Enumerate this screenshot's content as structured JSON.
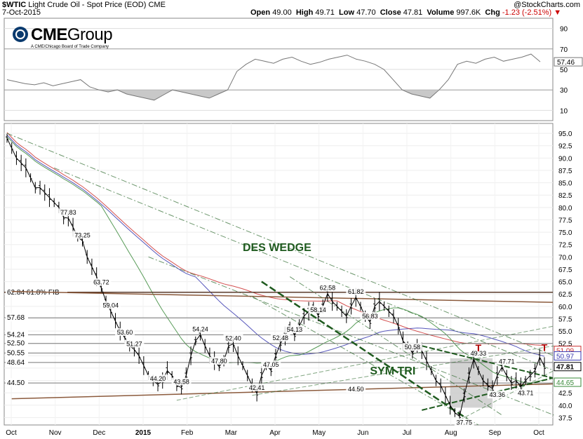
{
  "header": {
    "symbol": "$WTIC",
    "title": "Light Crude Oil - Spot Price (EOD)",
    "exchange": "CME",
    "date": "7-Oct-2015",
    "open_label": "Open",
    "open": "49.00",
    "high_label": "High",
    "high": "49.71",
    "low_label": "Low",
    "low": "47.70",
    "close_label": "Close",
    "close": "47.81",
    "volume_label": "Volume",
    "volume": "997.6K",
    "chg_label": "Chg",
    "chg": "-1.23 (-2.51%)",
    "credit": "@StockCharts.com"
  },
  "logo": {
    "word_bold": "CME",
    "word_thin": "Group",
    "sub": "A CME/Chicago Board of Trade Company"
  },
  "colors": {
    "price": "#000000",
    "trendline": "#2e6b2e",
    "ma_red": "#cc3333",
    "ma_blue": "#3a3ab0",
    "ma_green": "#3a8a3a",
    "support": "#8b5a3c",
    "shade": "#c8c8c8",
    "annotation_green": "#1e5a1e",
    "annotation_red": "#b00000"
  },
  "chart_data": [
    {
      "type": "line",
      "title": "",
      "series": [
        {
          "values": [
            40,
            38,
            36,
            35,
            37,
            34,
            36,
            38,
            40,
            33,
            30,
            28,
            30,
            26,
            24,
            22,
            20,
            25,
            30,
            28,
            26,
            24,
            22,
            26,
            30,
            48,
            55,
            60,
            58,
            56,
            60,
            62,
            58,
            55,
            57,
            60,
            62,
            64,
            60,
            58,
            55,
            50,
            40,
            30,
            26,
            24,
            22,
            30,
            40,
            55,
            58,
            56,
            60,
            62,
            58,
            60,
            62,
            65,
            57.46
          ]
        }
      ],
      "ylim": [
        0,
        100
      ],
      "yticks": [
        10,
        30,
        50,
        70,
        90
      ],
      "last_value_label": "57.46"
    },
    {
      "type": "line",
      "title": "",
      "series": [
        {
          "values": [
            94,
            92,
            90,
            89,
            88,
            86,
            84,
            84,
            83,
            82,
            81,
            80,
            78,
            77.83,
            76,
            74,
            73.25,
            70,
            68,
            66,
            63.72,
            61,
            59.04,
            57,
            55,
            53.6,
            52,
            51.27,
            50,
            48,
            46,
            45,
            44.2,
            45,
            47,
            46,
            44,
            43.58,
            46,
            50,
            53,
            54.24,
            52,
            50,
            49,
            47.8,
            49,
            52,
            52.4,
            50,
            48,
            46,
            44,
            42.41,
            46,
            48,
            47.05,
            50,
            52.48,
            54,
            56,
            54.13,
            56,
            58,
            59,
            60,
            58.14,
            60,
            62.58,
            61,
            60,
            59,
            58,
            60,
            61.82,
            60,
            58,
            56.83,
            60,
            61,
            60,
            59,
            58,
            56,
            53,
            52,
            50.58,
            52,
            51,
            49,
            47,
            45,
            44,
            42,
            40,
            38.5,
            37.75,
            42,
            46,
            49.33,
            47,
            45,
            44,
            43.36,
            46,
            47.71,
            46,
            44.5,
            45,
            43.71,
            45,
            46,
            47,
            49.71,
            47.81
          ]
        }
      ],
      "ylim": [
        36,
        97
      ],
      "yticks": [
        37.5,
        40,
        42.5,
        45,
        47.5,
        50,
        52.5,
        55,
        57.5,
        60,
        62.5,
        65,
        67.5,
        70,
        72.5,
        75,
        77.5,
        80,
        82.5,
        85,
        87.5,
        90,
        92.5,
        95
      ],
      "xticks": [
        "Oct",
        "Nov",
        "Dec",
        "2015",
        "Feb",
        "Mar",
        "Apr",
        "May",
        "Jun",
        "Jul",
        "Aug",
        "Sep",
        "Oct"
      ],
      "level_labels": [
        "62.84 61.8% FIB",
        "57.68",
        "54.24",
        "52.50",
        "50.55",
        "48.64",
        "44.50"
      ],
      "level_values": [
        62.84,
        57.68,
        54.24,
        52.5,
        50.55,
        48.64,
        44.5
      ],
      "point_labels": [
        {
          "x": 13,
          "y": 77.83,
          "text": "77.83"
        },
        {
          "x": 16,
          "y": 73.25,
          "text": "73.25"
        },
        {
          "x": 20,
          "y": 63.72,
          "text": "63.72"
        },
        {
          "x": 22,
          "y": 59.04,
          "text": "59.04"
        },
        {
          "x": 25,
          "y": 53.6,
          "text": "53.60"
        },
        {
          "x": 27,
          "y": 51.27,
          "text": "51.27"
        },
        {
          "x": 32,
          "y": 44.2,
          "text": "44.20"
        },
        {
          "x": 37,
          "y": 43.58,
          "text": "43.58"
        },
        {
          "x": 41,
          "y": 54.24,
          "text": "54.24"
        },
        {
          "x": 45,
          "y": 47.8,
          "text": "47.80"
        },
        {
          "x": 48,
          "y": 52.4,
          "text": "52.40"
        },
        {
          "x": 53,
          "y": 42.41,
          "text": "42.41"
        },
        {
          "x": 56,
          "y": 47.05,
          "text": "47.05"
        },
        {
          "x": 58,
          "y": 52.48,
          "text": "52.48"
        },
        {
          "x": 61,
          "y": 54.13,
          "text": "54.13"
        },
        {
          "x": 66,
          "y": 58.14,
          "text": "58.14"
        },
        {
          "x": 68,
          "y": 62.58,
          "text": "62.58"
        },
        {
          "x": 74,
          "y": 61.82,
          "text": "61.82"
        },
        {
          "x": 77,
          "y": 56.83,
          "text": "56.83"
        },
        {
          "x": 86,
          "y": 50.58,
          "text": "50.58"
        },
        {
          "x": 97,
          "y": 37.75,
          "text": "37.75"
        },
        {
          "x": 100,
          "y": 49.33,
          "text": "49.33"
        },
        {
          "x": 104,
          "y": 43.36,
          "text": "43.36"
        },
        {
          "x": 106,
          "y": 47.71,
          "text": "47.71"
        },
        {
          "x": 110,
          "y": 43.71,
          "text": "43.71"
        },
        {
          "x": 74,
          "y": 44.5,
          "text": "44.50"
        }
      ],
      "annotations": [
        "DES WEDGE",
        "SYM TRI",
        "T",
        "T"
      ],
      "right_labels": [
        {
          "value": 51.09,
          "text": "51.09",
          "color": "#cc3333"
        },
        {
          "value": 50.97,
          "text": "50.97",
          "color": "#3a3ab0"
        },
        {
          "value": 47.81,
          "text": "47.81",
          "color": "#000000"
        },
        {
          "value": 44.65,
          "text": "44.65",
          "color": "#3a8a3a"
        }
      ]
    }
  ]
}
